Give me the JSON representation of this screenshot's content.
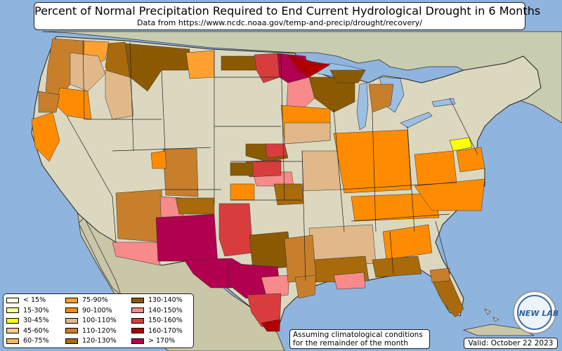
{
  "title": "Percent of Normal Precipitation Required to End Current Hydrological Drought in 6 Months",
  "subtitle": "Data from https://www.ncdc.noaa.gov/temp-and-precip/drought/recovery/",
  "note_line1": "Assuming climatological conditions",
  "note_line2": "for the remainder of the month",
  "valid_text": "Valid: October 22 2023",
  "logo_text": "NEW LAB",
  "colors": {
    "ocean": "#8fb4dd",
    "land": "#dcd8bf",
    "land_green": "#bfcf9e",
    "canada": "#c9cdb0",
    "water": "#9cbfe4",
    "border": "#222222"
  },
  "legend": [
    {
      "label": "< 15%",
      "color": "#fffde0"
    },
    {
      "label": "15-30%",
      "color": "#ffff99"
    },
    {
      "label": "30-45%",
      "color": "#ffff00"
    },
    {
      "label": "45-60%",
      "color": "#f9c98f"
    },
    {
      "label": "60-75%",
      "color": "#ffb45c"
    },
    {
      "label": "75-90%",
      "color": "#ffa030"
    },
    {
      "label": "90-100%",
      "color": "#ff8c00"
    },
    {
      "label": "100-110%",
      "color": "#e0b88a"
    },
    {
      "label": "110-120%",
      "color": "#c87f2c"
    },
    {
      "label": "120-130%",
      "color": "#a86a0a"
    },
    {
      "label": "130-140%",
      "color": "#8b5a00"
    },
    {
      "label": "140-150%",
      "color": "#f78a8a"
    },
    {
      "label": "150-160%",
      "color": "#d93c3c"
    },
    {
      "label": "160-170%",
      "color": "#b00000"
    },
    {
      "label": "> 170%",
      "color": "#b0004f"
    }
  ]
}
